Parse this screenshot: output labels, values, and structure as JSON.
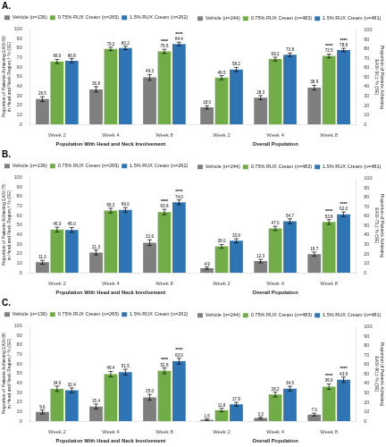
{
  "chart_data": [
    {
      "type": "bar",
      "title": "A.",
      "categories": [
        "Week 2",
        "Week 4",
        "Week 8"
      ],
      "x_label": "Population With Head and Neck Involvement",
      "y_label": "Proportion of Patients Achieving EASI-50\nin Head and Neck Region,† % (SE)",
      "series": [
        {
          "name": "Vehicle (n=136)",
          "color": "#7f7f7f",
          "values": [
            26.5,
            36.8,
            49.3
          ],
          "value_labels": [
            "26.5",
            "36.8",
            "49.3"
          ],
          "errors": [
            2.5,
            2.8,
            3.0
          ]
        },
        {
          "name": "0.75% RUX Cream (n=265)",
          "color": "#70ad47",
          "values": [
            66.0,
            79.2,
            76.6
          ],
          "value_labels": [
            "66.0",
            "79.2",
            "76.6"
          ],
          "errors": [
            2.2,
            1.8,
            2.2
          ]
        },
        {
          "name": "1.5% RUX Cream (n=262)",
          "color": "#2e75b6",
          "values": [
            66.8,
            80.2,
            84.4
          ],
          "value_labels": [
            "66.8",
            "80.2",
            "84.4"
          ],
          "errors": [
            2.2,
            1.8,
            1.8
          ]
        }
      ],
      "annotations": [
        {
          "text": "****",
          "category": "Week 8",
          "series": "0.75% RUX Cream (n=265)"
        },
        {
          "text": "****",
          "category": "Week 8",
          "series": "1.5% RUX Cream (n=262)"
        }
      ],
      "ylim": [
        0,
        100
      ],
      "yticks": [
        0,
        10,
        20,
        30,
        40,
        50,
        60,
        70,
        80,
        90,
        100
      ],
      "grid": false,
      "legend": "upper left",
      "data_labels": true
    },
    {
      "type": "bar",
      "categories": [
        "Week 2",
        "Week 4",
        "Week 8"
      ],
      "x_label": "Overall Population",
      "y_label": "Proportion of Patients Achieving\nEASI-50,‡ % (SE)",
      "series": [
        {
          "name": "Vehicle (n=244)",
          "color": "#7f7f7f",
          "values": [
            18.0,
            28.3,
            38.9
          ],
          "value_labels": [
            "18.0",
            "28.3",
            "38.9"
          ],
          "errors": [
            1.8,
            2.2,
            2.5
          ]
        },
        {
          "name": "0.75% RUX Cream (n=483)",
          "color": "#70ad47",
          "values": [
            49.5,
            69.2,
            72.5
          ],
          "value_labels": [
            "49.5",
            "69.2",
            "72.5"
          ],
          "errors": [
            2.2,
            2.0,
            2.0
          ]
        },
        {
          "name": "1.5% RUX Cream (n=481)",
          "color": "#2e75b6",
          "values": [
            58.2,
            73.8,
            78.8
          ],
          "value_labels": [
            "58.2",
            "73.8",
            "78.8"
          ],
          "errors": [
            2.2,
            1.8,
            1.8
          ]
        }
      ],
      "annotations": [
        {
          "text": "****",
          "category": "Week 8",
          "series": "0.75% RUX Cream (n=483)"
        },
        {
          "text": "****",
          "category": "Week 8",
          "series": "1.5% RUX Cream (n=481)"
        }
      ],
      "ylim": [
        0,
        100
      ],
      "yticks": [
        0,
        10,
        20,
        30,
        40,
        50,
        60,
        70,
        80,
        90,
        100
      ],
      "grid": false,
      "legend": "upper left",
      "data_labels": true
    },
    {
      "type": "bar",
      "title": "B.",
      "categories": [
        "Week 2",
        "Week 4",
        "Week 8"
      ],
      "x_label": "Population With Head and Neck Involvement",
      "y_label": "Proportion of Patients Achieving EASI-75\nin Head and Neck Region,† % (SE)",
      "series": [
        {
          "name": "Vehicle (n=136)",
          "color": "#7f7f7f",
          "values": [
            11.0,
            21.3,
            31.6
          ],
          "value_labels": [
            "11.0",
            "21.3",
            "31.6"
          ],
          "errors": [
            2.0,
            2.5,
            3.0
          ]
        },
        {
          "name": "0.75% RUX Cream (n=265)",
          "color": "#70ad47",
          "values": [
            45.3,
            65.3,
            63.8
          ],
          "value_labels": [
            "45.3",
            "65.3",
            "63.8"
          ],
          "errors": [
            2.5,
            2.5,
            2.8
          ]
        },
        {
          "name": "1.5% RUX Cream (n=262)",
          "color": "#2e75b6",
          "values": [
            45.0,
            66.0,
            74.0
          ],
          "value_labels": [
            "45.0",
            "66.0",
            "74.0"
          ],
          "errors": [
            2.5,
            2.5,
            2.5
          ]
        }
      ],
      "annotations": [
        {
          "text": "****",
          "category": "Week 8",
          "series": "0.75% RUX Cream (n=265)"
        },
        {
          "text": "****",
          "category": "Week 8",
          "series": "1.5% RUX Cream (n=262)"
        }
      ],
      "ylim": [
        0,
        100
      ],
      "yticks": [
        0,
        10,
        20,
        30,
        40,
        50,
        60,
        70,
        80,
        90,
        100
      ],
      "grid": false,
      "legend": "upper left",
      "data_labels": true
    },
    {
      "type": "bar",
      "categories": [
        "Week 2",
        "Week 4",
        "Week 8"
      ],
      "x_label": "Overall Population",
      "y_label": "Proportion of Patients Achieving\nEASI-75,‡ % (SE)",
      "series": [
        {
          "name": "Vehicle (n=244)",
          "color": "#7f7f7f",
          "values": [
            4.9,
            12.3,
            19.7
          ],
          "value_labels": [
            "4.9",
            "12.3",
            "19.7"
          ],
          "errors": [
            1.2,
            1.8,
            2.2
          ]
        },
        {
          "name": "0.75% RUX Cream (n=483)",
          "color": "#70ad47",
          "values": [
            28.0,
            47.0,
            53.8
          ],
          "value_labels": [
            "28.0",
            "47.0",
            "53.8"
          ],
          "errors": [
            2.0,
            2.2,
            2.5
          ]
        },
        {
          "name": "1.5% RUX Cream (n=481)",
          "color": "#2e75b6",
          "values": [
            33.9,
            54.7,
            62.0
          ],
          "value_labels": [
            "33.9",
            "54.7",
            "62.0"
          ],
          "errors": [
            2.2,
            2.5,
            2.5
          ]
        }
      ],
      "annotations": [
        {
          "text": "****",
          "category": "Week 8",
          "series": "0.75% RUX Cream (n=483)"
        },
        {
          "text": "****",
          "category": "Week 8",
          "series": "1.5% RUX Cream (n=481)"
        }
      ],
      "ylim": [
        0,
        100
      ],
      "yticks": [
        0,
        10,
        20,
        30,
        40,
        50,
        60,
        70,
        80,
        90,
        100
      ],
      "grid": false,
      "legend": "upper left",
      "data_labels": true
    },
    {
      "type": "bar",
      "title": "C.",
      "categories": [
        "Week 2",
        "Week 4",
        "Week 8"
      ],
      "x_label": "Population With Head and Neck Involvement",
      "y_label": "Proportion of Patients Achieving EASI-90\nin Head and Neck Region,† % (SE)",
      "series": [
        {
          "name": "Vehicle (n=136)",
          "color": "#7f7f7f",
          "values": [
            9.6,
            15.4,
            25.0
          ],
          "value_labels": [
            "9.6",
            "15.4",
            "25.0"
          ],
          "errors": [
            2.0,
            2.5,
            3.0
          ]
        },
        {
          "name": "0.75% RUX Cream (n=265)",
          "color": "#70ad47",
          "values": [
            34.0,
            49.4,
            52.8
          ],
          "value_labels": [
            "34.0",
            "49.4",
            "52.8"
          ],
          "errors": [
            2.8,
            2.8,
            3.0
          ]
        },
        {
          "name": "1.5% RUX Cream (n=262)",
          "color": "#2e75b6",
          "values": [
            32.4,
            51.5,
            63.0
          ],
          "value_labels": [
            "32.4",
            "51.5",
            "63.0"
          ],
          "errors": [
            2.5,
            3.0,
            3.0
          ]
        }
      ],
      "annotations": [
        {
          "text": "****",
          "category": "Week 8",
          "series": "0.75% RUX Cream (n=265)"
        },
        {
          "text": "****",
          "category": "Week 8",
          "series": "1.5% RUX Cream (n=262)"
        }
      ],
      "ylim": [
        0,
        100
      ],
      "yticks": [
        0,
        10,
        20,
        30,
        40,
        50,
        60,
        70,
        80,
        90,
        100
      ],
      "grid": false,
      "legend": "upper left",
      "data_labels": true
    },
    {
      "type": "bar",
      "categories": [
        "Week 2",
        "Week 4",
        "Week 8"
      ],
      "x_label": "Overall Population",
      "y_label": "Proportion of Patients Achieving\nEASI-90,‡ % (SE)",
      "series": [
        {
          "name": "Vehicle (n=244)",
          "color": "#7f7f7f",
          "values": [
            1.6,
            3.3,
            7.0
          ],
          "value_labels": [
            "1.6",
            "3.3",
            "7.0"
          ],
          "errors": [
            0.8,
            1.0,
            1.5
          ]
        },
        {
          "name": "0.75% RUX Cream (n=483)",
          "color": "#70ad47",
          "values": [
            11.8,
            28.2,
            36.6
          ],
          "value_labels": [
            "11.8",
            "28.2",
            "36.6"
          ],
          "errors": [
            1.8,
            2.5,
            2.8
          ]
        },
        {
          "name": "1.5% RUX Cream (n=481)",
          "color": "#2e75b6",
          "values": [
            17.9,
            34.5,
            43.9
          ],
          "value_labels": [
            "17.9",
            "34.5",
            "43.9"
          ],
          "errors": [
            2.0,
            2.5,
            2.8
          ]
        }
      ],
      "annotations": [
        {
          "text": "****",
          "category": "Week 8",
          "series": "0.75% RUX Cream (n=483)"
        },
        {
          "text": "****",
          "category": "Week 8",
          "series": "1.5% RUX Cream (n=481)"
        }
      ],
      "ylim": [
        0,
        100
      ],
      "yticks": [
        0,
        10,
        20,
        30,
        40,
        50,
        60,
        70,
        80,
        90,
        100
      ],
      "grid": false,
      "legend": "upper left",
      "data_labels": true
    }
  ]
}
